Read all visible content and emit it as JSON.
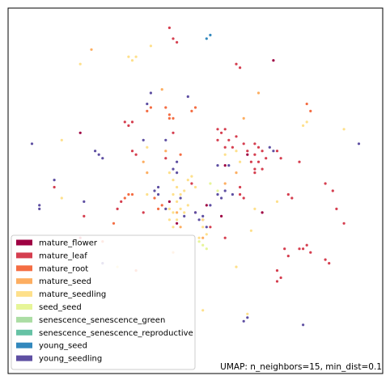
{
  "chart_data": {
    "type": "scatter",
    "title": "",
    "xlabel": "",
    "ylabel": "",
    "axes_visible": false,
    "legend_position": "lower-left",
    "annotation": "UMAP: n_neighbors=15, min_dist=0.1",
    "categories": [
      {
        "name": "mature_flower",
        "color": "#9e0142"
      },
      {
        "name": "mature_leaf",
        "color": "#d53e4f"
      },
      {
        "name": "mature_root",
        "color": "#f46d43"
      },
      {
        "name": "mature_seed",
        "color": "#fdae61"
      },
      {
        "name": "mature_seedling",
        "color": "#fee08b"
      },
      {
        "name": "seed_seed",
        "color": "#e6f598"
      },
      {
        "name": "senescence_senescence_green",
        "color": "#abdda4"
      },
      {
        "name": "senescence_senescence_reproductive",
        "color": "#66c2a5"
      },
      {
        "name": "young_seed",
        "color": "#3288bd"
      },
      {
        "name": "young_seedling",
        "color": "#5e4fa2"
      }
    ],
    "series": [
      {
        "name": "mature_flower",
        "points": [
          [
            0.71,
            0.86
          ],
          [
            0.57,
            0.43
          ],
          [
            0.68,
            0.44
          ],
          [
            0.58,
            0.57
          ],
          [
            0.53,
            0.46
          ],
          [
            0.43,
            0.47
          ],
          [
            0.45,
            0.41
          ],
          [
            0.64,
            0.6
          ],
          [
            0.19,
            0.66
          ]
        ]
      },
      {
        "name": "mature_leaf",
        "points": [
          [
            0.43,
            0.95
          ],
          [
            0.44,
            0.92
          ],
          [
            0.45,
            0.91
          ],
          [
            0.61,
            0.85
          ],
          [
            0.31,
            0.69
          ],
          [
            0.32,
            0.68
          ],
          [
            0.33,
            0.69
          ],
          [
            0.33,
            0.61
          ],
          [
            0.34,
            0.6
          ],
          [
            0.56,
            0.67
          ],
          [
            0.57,
            0.66
          ],
          [
            0.58,
            0.67
          ],
          [
            0.56,
            0.64
          ],
          [
            0.59,
            0.64
          ],
          [
            0.58,
            0.62
          ],
          [
            0.6,
            0.62
          ],
          [
            0.61,
            0.65
          ],
          [
            0.63,
            0.63
          ],
          [
            0.64,
            0.61
          ],
          [
            0.66,
            0.6
          ],
          [
            0.66,
            0.63
          ],
          [
            0.67,
            0.62
          ],
          [
            0.68,
            0.61
          ],
          [
            0.65,
            0.58
          ],
          [
            0.67,
            0.58
          ],
          [
            0.69,
            0.59
          ],
          [
            0.66,
            0.56
          ],
          [
            0.68,
            0.56
          ],
          [
            0.72,
            0.61
          ],
          [
            0.73,
            0.59
          ],
          [
            0.66,
            0.55
          ],
          [
            0.62,
            0.49
          ],
          [
            0.63,
            0.48
          ],
          [
            0.62,
            0.51
          ],
          [
            0.75,
            0.49
          ],
          [
            0.76,
            0.48
          ],
          [
            0.78,
            0.58
          ],
          [
            0.85,
            0.52
          ],
          [
            0.87,
            0.5
          ],
          [
            0.88,
            0.45
          ],
          [
            0.74,
            0.34
          ],
          [
            0.75,
            0.32
          ],
          [
            0.78,
            0.34
          ],
          [
            0.79,
            0.34
          ],
          [
            0.8,
            0.35
          ],
          [
            0.81,
            0.33
          ],
          [
            0.85,
            0.31
          ],
          [
            0.86,
            0.3
          ],
          [
            0.72,
            0.28
          ],
          [
            0.73,
            0.26
          ],
          [
            0.72,
            0.25
          ],
          [
            0.62,
            0.84
          ],
          [
            0.5,
            0.44
          ],
          [
            0.52,
            0.42
          ],
          [
            0.54,
            0.4
          ],
          [
            0.3,
            0.47
          ],
          [
            0.29,
            0.45
          ],
          [
            0.44,
            0.66
          ],
          [
            0.2,
            0.43
          ],
          [
            0.19,
            0.37
          ],
          [
            0.12,
            0.51
          ],
          [
            0.9,
            0.41
          ],
          [
            0.58,
            0.37
          ],
          [
            0.42,
            0.59
          ],
          [
            0.49,
            0.52
          ],
          [
            0.36,
            0.44
          ]
        ]
      },
      {
        "name": "mature_root",
        "points": [
          [
            0.42,
            0.73
          ],
          [
            0.43,
            0.71
          ],
          [
            0.44,
            0.7
          ],
          [
            0.43,
            0.7
          ],
          [
            0.38,
            0.73
          ],
          [
            0.37,
            0.72
          ],
          [
            0.49,
            0.72
          ],
          [
            0.5,
            0.73
          ],
          [
            0.32,
            0.49
          ],
          [
            0.31,
            0.48
          ],
          [
            0.33,
            0.49
          ],
          [
            0.39,
            0.48
          ],
          [
            0.41,
            0.46
          ],
          [
            0.8,
            0.74
          ],
          [
            0.81,
            0.72
          ],
          [
            0.28,
            0.41
          ],
          [
            0.25,
            0.36
          ],
          [
            0.4,
            0.45
          ],
          [
            0.46,
            0.6
          ],
          [
            0.34,
            0.28
          ]
        ]
      },
      {
        "name": "mature_seed",
        "points": [
          [
            0.22,
            0.89
          ],
          [
            0.36,
            0.58
          ],
          [
            0.37,
            0.55
          ],
          [
            0.42,
            0.61
          ],
          [
            0.58,
            0.52
          ],
          [
            0.61,
            0.55
          ],
          [
            0.46,
            0.4
          ],
          [
            0.52,
            0.37
          ],
          [
            0.44,
            0.33
          ],
          [
            0.45,
            0.44
          ],
          [
            0.63,
            0.7
          ],
          [
            0.67,
            0.77
          ],
          [
            0.41,
            0.78
          ]
        ]
      },
      {
        "name": "mature_seedling",
        "points": [
          [
            0.32,
            0.87
          ],
          [
            0.33,
            0.86
          ],
          [
            0.34,
            0.87
          ],
          [
            0.19,
            0.85
          ],
          [
            0.38,
            0.9
          ],
          [
            0.14,
            0.64
          ],
          [
            0.37,
            0.62
          ],
          [
            0.58,
            0.6
          ],
          [
            0.61,
            0.61
          ],
          [
            0.62,
            0.58
          ],
          [
            0.43,
            0.55
          ],
          [
            0.44,
            0.53
          ],
          [
            0.45,
            0.51
          ],
          [
            0.44,
            0.49
          ],
          [
            0.45,
            0.47
          ],
          [
            0.46,
            0.49
          ],
          [
            0.47,
            0.5
          ],
          [
            0.46,
            0.45
          ],
          [
            0.47,
            0.44
          ],
          [
            0.48,
            0.46
          ],
          [
            0.44,
            0.44
          ],
          [
            0.43,
            0.45
          ],
          [
            0.42,
            0.45
          ],
          [
            0.45,
            0.42
          ],
          [
            0.43,
            0.42
          ],
          [
            0.44,
            0.4
          ],
          [
            0.49,
            0.54
          ],
          [
            0.48,
            0.53
          ],
          [
            0.5,
            0.51
          ],
          [
            0.52,
            0.42
          ],
          [
            0.53,
            0.38
          ],
          [
            0.52,
            0.4
          ],
          [
            0.51,
            0.37
          ],
          [
            0.14,
            0.48
          ],
          [
            0.66,
            0.45
          ],
          [
            0.72,
            0.47
          ],
          [
            0.79,
            0.68
          ],
          [
            0.8,
            0.69
          ],
          [
            0.9,
            0.67
          ],
          [
            0.61,
            0.29
          ],
          [
            0.64,
            0.16
          ],
          [
            0.52,
            0.17
          ],
          [
            0.65,
            0.39
          ],
          [
            0.37,
            0.49
          ],
          [
            0.29,
            0.29
          ]
        ]
      },
      {
        "name": "seed_seed",
        "points": [
          [
            0.56,
            0.5
          ],
          [
            0.54,
            0.52
          ],
          [
            0.52,
            0.35
          ],
          [
            0.51,
            0.36
          ],
          [
            0.53,
            0.34
          ]
        ]
      },
      {
        "name": "senescence_senescence_green",
        "points": []
      },
      {
        "name": "senescence_senescence_reproductive",
        "points": []
      },
      {
        "name": "young_seed",
        "points": [
          [
            0.53,
            0.92
          ],
          [
            0.54,
            0.93
          ]
        ]
      },
      {
        "name": "young_seedling",
        "points": [
          [
            0.38,
            0.77
          ],
          [
            0.37,
            0.74
          ],
          [
            0.48,
            0.76
          ],
          [
            0.23,
            0.61
          ],
          [
            0.24,
            0.6
          ],
          [
            0.25,
            0.59
          ],
          [
            0.06,
            0.63
          ],
          [
            0.08,
            0.45
          ],
          [
            0.08,
            0.46
          ],
          [
            0.12,
            0.53
          ],
          [
            0.2,
            0.47
          ],
          [
            0.4,
            0.51
          ],
          [
            0.39,
            0.5
          ],
          [
            0.4,
            0.49
          ],
          [
            0.42,
            0.45
          ],
          [
            0.46,
            0.48
          ],
          [
            0.47,
            0.43
          ],
          [
            0.5,
            0.44
          ],
          [
            0.51,
            0.42
          ],
          [
            0.52,
            0.43
          ],
          [
            0.54,
            0.46
          ],
          [
            0.56,
            0.49
          ],
          [
            0.57,
            0.48
          ],
          [
            0.58,
            0.5
          ],
          [
            0.6,
            0.49
          ],
          [
            0.36,
            0.64
          ],
          [
            0.42,
            0.64
          ],
          [
            0.45,
            0.58
          ],
          [
            0.53,
            0.4
          ],
          [
            0.56,
            0.57
          ],
          [
            0.59,
            0.57
          ],
          [
            0.7,
            0.62
          ],
          [
            0.71,
            0.61
          ],
          [
            0.94,
            0.63
          ],
          [
            0.64,
            0.15
          ],
          [
            0.63,
            0.14
          ],
          [
            0.79,
            0.13
          ],
          [
            0.25,
            0.3
          ],
          [
            0.44,
            0.56
          ],
          [
            0.45,
            0.55
          ]
        ]
      }
    ]
  }
}
